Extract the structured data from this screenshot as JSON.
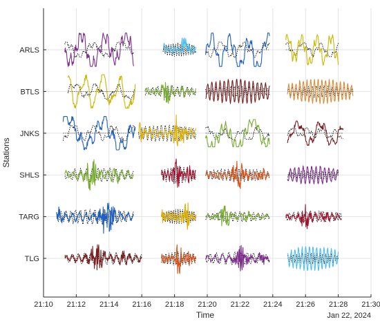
{
  "chart_data": {
    "type": "line",
    "title": "",
    "xlabel": "Time",
    "ylabel": "Stations",
    "date_label": "Jan 22, 2024",
    "xlim": [
      "21:10",
      "21:30"
    ],
    "x_ticks": [
      "21:10",
      "21:12",
      "21:14",
      "21:16",
      "21:18",
      "21:20",
      "21:22",
      "21:24",
      "21:26",
      "21:28",
      "21:30"
    ],
    "stations": [
      "ARLS",
      "BTLS",
      "JNKS",
      "SHLS",
      "TARG",
      "TLG"
    ],
    "grid": true,
    "legend": "none",
    "segments": [
      {
        "station": "ARLS",
        "start": "21:11.3",
        "end": "21:15.5",
        "color": "#7e2f8e",
        "shape": "drift",
        "amp": 0.55,
        "reference": true
      },
      {
        "station": "ARLS",
        "start": "21:17.3",
        "end": "21:19.3",
        "color": "#4dbeee",
        "shape": "noise",
        "amp": 0.5,
        "reference": true
      },
      {
        "station": "ARLS",
        "start": "21:19.9",
        "end": "21:23.8",
        "color": "#1f5fbf",
        "shape": "drift",
        "amp": 0.55,
        "reference": true
      },
      {
        "station": "ARLS",
        "start": "21:24.8",
        "end": "21:28.0",
        "color": "#c9b800",
        "shape": "drift",
        "amp": 0.5,
        "reference": true
      },
      {
        "station": "BTLS",
        "start": "21:11.5",
        "end": "21:15.6",
        "color": "#c9b800",
        "shape": "drift",
        "amp": 0.55,
        "reference": true
      },
      {
        "station": "BTLS",
        "start": "21:16.2",
        "end": "21:19.3",
        "color": "#77ac30",
        "shape": "burst",
        "amp": 0.4,
        "reference": true
      },
      {
        "station": "BTLS",
        "start": "21:19.9",
        "end": "21:23.8",
        "color": "#7a1f1f",
        "shape": "osc",
        "amp": 0.4,
        "reference": true
      },
      {
        "station": "BTLS",
        "start": "21:24.9",
        "end": "21:28.9",
        "color": "#d98c3a",
        "shape": "osc",
        "amp": 0.4,
        "reference": true
      },
      {
        "station": "JNKS",
        "start": "21:11.2",
        "end": "21:15.6",
        "color": "#1f5fbf",
        "shape": "drift",
        "amp": 0.55,
        "reference": true
      },
      {
        "station": "JNKS",
        "start": "21:15.8",
        "end": "21:19.3",
        "color": "#e0b000",
        "shape": "burst",
        "amp": 0.6,
        "reference": true
      },
      {
        "station": "JNKS",
        "start": "21:19.9",
        "end": "21:23.8",
        "color": "#77ac30",
        "shape": "drift",
        "amp": 0.45,
        "reference": true
      },
      {
        "station": "JNKS",
        "start": "21:24.9",
        "end": "21:28.3",
        "color": "#7a1f1f",
        "shape": "drift",
        "amp": 0.4,
        "reference": true
      },
      {
        "station": "SHLS",
        "start": "21:11.3",
        "end": "21:15.5",
        "color": "#77ac30",
        "shape": "burst",
        "amp": 0.5,
        "reference": true
      },
      {
        "station": "SHLS",
        "start": "21:17.2",
        "end": "21:19.3",
        "color": "#a2142f",
        "shape": "burst",
        "amp": 0.6,
        "reference": true
      },
      {
        "station": "SHLS",
        "start": "21:19.9",
        "end": "21:23.8",
        "color": "#d95319",
        "shape": "burst",
        "amp": 0.45,
        "reference": true
      },
      {
        "station": "SHLS",
        "start": "21:24.9",
        "end": "21:28.0",
        "color": "#7e2f8e",
        "shape": "osc",
        "amp": 0.3,
        "reference": true
      },
      {
        "station": "TARG",
        "start": "21:10.8",
        "end": "21:15.5",
        "color": "#1f5fbf",
        "shape": "burst",
        "amp": 0.55,
        "reference": true
      },
      {
        "station": "TARG",
        "start": "21:17.2",
        "end": "21:19.3",
        "color": "#e0b000",
        "shape": "burst",
        "amp": 0.55,
        "reference": true
      },
      {
        "station": "TARG",
        "start": "21:19.9",
        "end": "21:23.8",
        "color": "#77ac30",
        "shape": "burst",
        "amp": 0.35,
        "reference": true
      },
      {
        "station": "TARG",
        "start": "21:24.8",
        "end": "21:28.2",
        "color": "#a2142f",
        "shape": "burst",
        "amp": 0.4,
        "reference": true
      },
      {
        "station": "TLG",
        "start": "21:11.3",
        "end": "21:16.0",
        "color": "#7a1f1f",
        "shape": "burst",
        "amp": 0.45,
        "reference": true
      },
      {
        "station": "TLG",
        "start": "21:17.2",
        "end": "21:19.3",
        "color": "#d95319",
        "shape": "burst",
        "amp": 0.5,
        "reference": true
      },
      {
        "station": "TLG",
        "start": "21:19.9",
        "end": "21:23.8",
        "color": "#7e2f8e",
        "shape": "burst",
        "amp": 0.45,
        "reference": true
      },
      {
        "station": "TLG",
        "start": "21:24.9",
        "end": "21:28.0",
        "color": "#4dbeee",
        "shape": "osc",
        "amp": 0.4,
        "reference": true
      }
    ]
  }
}
